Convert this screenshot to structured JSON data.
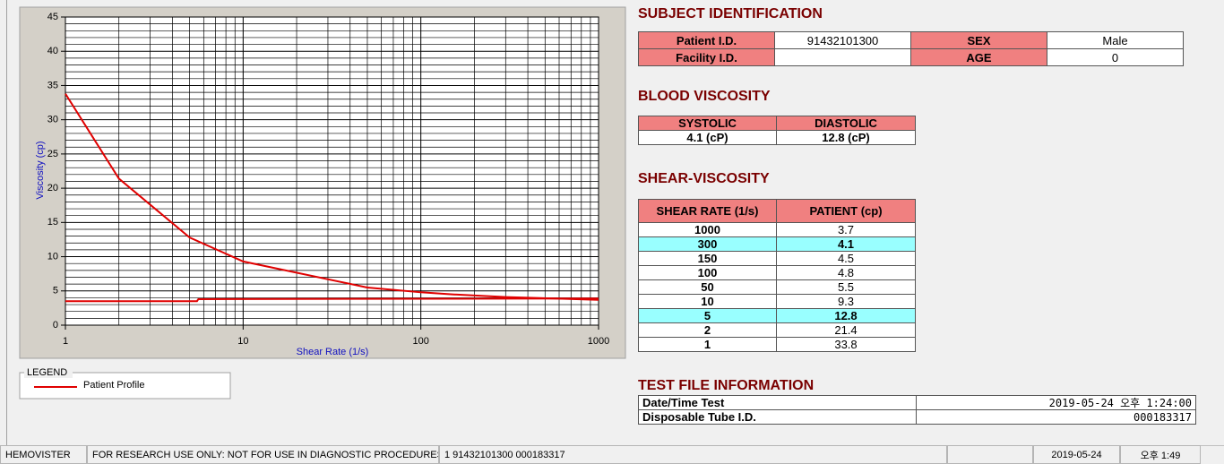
{
  "chart_data": {
    "type": "line",
    "y_label": "Viscosity (cp)",
    "x_label": "Shear Rate (1/s)",
    "xscale": "log",
    "xlim": [
      1,
      1000
    ],
    "xticks": [
      1,
      10,
      100,
      1000
    ],
    "ylim": [
      0,
      45
    ],
    "yticks": [
      0,
      5,
      10,
      15,
      20,
      25,
      30,
      35,
      40,
      45
    ],
    "grid": true,
    "x_minor_grid": [
      2,
      3,
      4,
      5,
      6,
      7,
      8,
      9,
      20,
      30,
      40,
      50,
      60,
      70,
      80,
      90,
      200,
      300,
      400,
      500,
      600,
      700,
      800,
      900
    ],
    "y_minor_grid": [
      1,
      2,
      3,
      4,
      6,
      7,
      8,
      9,
      11,
      12,
      13,
      14,
      16,
      17,
      18,
      19,
      21,
      22,
      23,
      24,
      26,
      27,
      28,
      29,
      31,
      32,
      33,
      34,
      36,
      37,
      38,
      39,
      41,
      42,
      43,
      44
    ],
    "legend_title": "LEGEND",
    "series": [
      {
        "name": "Patient Profile",
        "color": "#e00000",
        "x": [
          1,
          2,
          5,
          10,
          50,
          100,
          150,
          300,
          1000
        ],
        "values": [
          33.8,
          21.4,
          12.8,
          9.3,
          5.5,
          4.8,
          4.5,
          4.1,
          3.7
        ]
      },
      {
        "color": "#e00000",
        "x": [
          1,
          5.5,
          5.6,
          1000
        ],
        "values": [
          3.5,
          3.5,
          3.8,
          3.9
        ]
      }
    ]
  },
  "subject": {
    "title": "SUBJECT IDENTIFICATION",
    "rows": [
      [
        "Patient I.D.",
        "91432101300",
        "SEX",
        "Male"
      ],
      [
        "Facility I.D.",
        null,
        "AGE",
        0
      ]
    ]
  },
  "blood_viscosity": {
    "title": "BLOOD VISCOSITY",
    "headers": [
      "SYSTOLIC",
      "DIASTOLIC"
    ],
    "values": [
      "4.1 (cP)",
      "12.8 (cP)"
    ]
  },
  "shear_viscosity": {
    "title": "SHEAR-VISCOSITY",
    "headers": [
      "SHEAR RATE (1/s)",
      "PATIENT (cp)"
    ],
    "rows": [
      [
        1000,
        3.7
      ],
      [
        300,
        4.1
      ],
      [
        150,
        4.5
      ],
      [
        100,
        4.8
      ],
      [
        50,
        5.5
      ],
      [
        10,
        9.3
      ],
      [
        5,
        12.8
      ],
      [
        2,
        21.4
      ],
      [
        1,
        33.8
      ]
    ],
    "highlight_rows": [
      1,
      6
    ],
    "highlight_color": "#99ffff"
  },
  "test_file": {
    "title": "TEST FILE INFORMATION",
    "rows": [
      [
        "Date/Time Test",
        "2019-05-24   오후 1:24:00"
      ],
      [
        "Disposable Tube I.D.",
        "000183317"
      ]
    ]
  },
  "status_bar": [
    "HEMOVISTER",
    "FOR RESEARCH USE ONLY: NOT FOR USE IN DIAGNOSTIC PROCEDURES",
    "1  91432101300  000183317",
    "2019-05-24",
    "오후 1:49"
  ]
}
